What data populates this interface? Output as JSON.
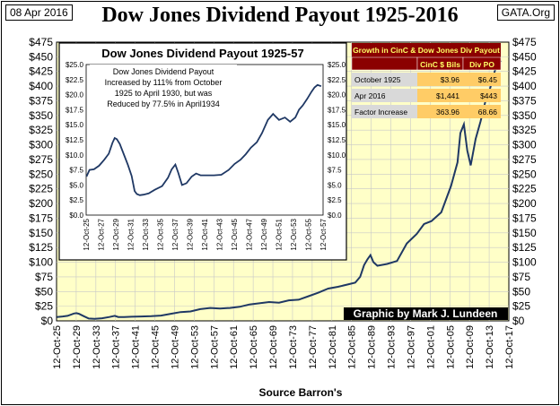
{
  "header": {
    "date": "08 Apr 2016",
    "source": "GATA.Org",
    "title": "Dow Jones Dividend Payout 1925-2016"
  },
  "colors": {
    "plot_bg": "#FFFFC8",
    "line": "#1F3864",
    "grid": "#C8C8C8",
    "table_header_bg": "#8B0000",
    "table_header_text": "#FFFF66",
    "table_cell_bg": "#D9D9D9",
    "table_val_bg": "#FFCC66",
    "credit_bg": "#000000",
    "credit_text": "#FFFFFF"
  },
  "chart_data": [
    {
      "type": "line",
      "title": "Dow Jones Dividend Payout 1925-2016",
      "xlabel": "Source Barron's",
      "ylabel": "",
      "xlim": [
        1925.75,
        2017.75
      ],
      "ylim": [
        0,
        475
      ],
      "yticks": [
        "$0",
        "$25",
        "$50",
        "$75",
        "$100",
        "$125",
        "$150",
        "$175",
        "$200",
        "$225",
        "$250",
        "$275",
        "$300",
        "$325",
        "$350",
        "$375",
        "$400",
        "$425",
        "$450",
        "$475"
      ],
      "xticks": [
        "12-Oct-25",
        "12-Oct-29",
        "12-Oct-33",
        "12-Oct-37",
        "12-Oct-41",
        "12-Oct-45",
        "12-Oct-49",
        "12-Oct-53",
        "12-Oct-57",
        "12-Oct-61",
        "12-Oct-65",
        "12-Oct-69",
        "12-Oct-73",
        "12-Oct-77",
        "12-Oct-81",
        "12-Oct-85",
        "12-Oct-89",
        "12-Oct-93",
        "12-Oct-97",
        "12-Oct-01",
        "12-Oct-05",
        "12-Oct-09",
        "12-Oct-13",
        "12-Oct-17"
      ],
      "series": [
        {
          "name": "DJIA Dividend Payout",
          "x": [
            1925.8,
            1927,
            1928,
            1929.3,
            1929.8,
            1930.3,
            1931.3,
            1932.3,
            1933.5,
            1935,
            1936.5,
            1937.6,
            1938.3,
            1939.5,
            1941,
            1943,
            1945,
            1947,
            1949,
            1951,
            1953,
            1955,
            1957,
            1959,
            1961,
            1963,
            1965,
            1967,
            1969,
            1971,
            1973,
            1975,
            1977,
            1979,
            1981,
            1983,
            1985,
            1986.5,
            1987.5,
            1988.3,
            1989,
            1989.6,
            1990.2,
            1991,
            1993,
            1995,
            1997,
            1999,
            2000.5,
            2002,
            2004,
            2006,
            2007.3,
            2007.9,
            2008.6,
            2009.3,
            2010,
            2011,
            2012,
            2013,
            2013.9,
            2014.7,
            2015.4,
            2016.2
          ],
          "values": [
            6.5,
            7.5,
            8.5,
            12.5,
            13.2,
            12,
            8,
            4,
            3.5,
            4.5,
            6.5,
            8.5,
            6.5,
            6.5,
            7,
            7.5,
            8,
            9,
            12,
            15,
            16,
            20,
            22,
            21,
            22,
            24,
            28,
            30,
            32,
            31,
            35,
            36,
            42,
            48,
            55,
            58,
            62,
            65,
            75,
            95,
            105,
            112,
            100,
            94,
            97,
            102,
            132,
            148,
            165,
            170,
            185,
            230,
            270,
            320,
            335,
            290,
            265,
            310,
            340,
            375,
            395,
            420,
            440,
            443
          ]
        }
      ],
      "annotations": [
        "Graphic by Mark J. Lundeen"
      ]
    },
    {
      "type": "line",
      "title": "Dow Jones Dividend Payout 1925-57",
      "annotations": [
        "Dow Jones Dividend Payout",
        "Increased by  111% from October",
        "1925 to April 1930, but was",
        "Reduced by 77.5% in April1934"
      ],
      "xlim": [
        1925.75,
        1957.75
      ],
      "ylim": [
        0,
        25
      ],
      "yticks": [
        "$0.0",
        "$2.5",
        "$5.0",
        "$7.5",
        "$10.0",
        "$12.5",
        "$15.0",
        "$17.5",
        "$20.0",
        "$22.5",
        "$25.0"
      ],
      "xticks": [
        "12-Oct-25",
        "12-Oct-27",
        "12-Oct-29",
        "12-Oct-31",
        "12-Oct-33",
        "12-Oct-35",
        "12-Oct-37",
        "12-Oct-39",
        "12-Oct-41",
        "12-Oct-43",
        "12-Oct-45",
        "12-Oct-47",
        "12-Oct-49",
        "12-Oct-51",
        "12-Oct-53",
        "12-Oct-55",
        "12-Oct-57"
      ],
      "series": [
        {
          "name": "DJIA Dividend Payout 1925-57",
          "x": [
            1925.8,
            1926.2,
            1926.8,
            1927.5,
            1928.2,
            1928.8,
            1929.3,
            1929.6,
            1929.9,
            1930.3,
            1930.8,
            1931.4,
            1931.9,
            1932.3,
            1932.6,
            1933,
            1933.5,
            1934.2,
            1935,
            1936,
            1936.8,
            1937.3,
            1937.8,
            1938.2,
            1938.7,
            1939.3,
            1940,
            1940.6,
            1941.2,
            1942,
            1943,
            1944,
            1945,
            1945.8,
            1946.6,
            1947.3,
            1948,
            1948.8,
            1949.5,
            1950.3,
            1951,
            1951.8,
            1952.6,
            1953.3,
            1954,
            1954.5,
            1955,
            1955.6,
            1956.2,
            1956.6,
            1957,
            1957.5
          ],
          "values": [
            6.4,
            7.5,
            7.6,
            8.2,
            9.2,
            10.2,
            12,
            12.8,
            12.6,
            11.8,
            10.2,
            8.3,
            6.5,
            4.0,
            3.5,
            3.3,
            3.4,
            3.6,
            4.2,
            4.8,
            6.2,
            7.6,
            8.4,
            7,
            5.0,
            5.3,
            6.4,
            6.9,
            6.6,
            6.6,
            6.6,
            6.7,
            7.5,
            8.5,
            9.2,
            10.1,
            11.2,
            12.1,
            13.6,
            15.8,
            16.8,
            15.8,
            16.2,
            15.5,
            16.2,
            17.5,
            18.2,
            19.3,
            20.5,
            21.2,
            21.6,
            21.4
          ]
        }
      ]
    },
    {
      "type": "table",
      "title": "Growth in CinC & Dow Jones Div Payout",
      "columns": [
        "",
        "CinC $ Bils",
        "Div PO"
      ],
      "rows": [
        [
          "October 1925",
          "$3.96",
          "$6.45"
        ],
        [
          "Apr 2016",
          "$1,441",
          "$443"
        ],
        [
          "Factor Increase",
          "363.96",
          "68.66"
        ]
      ]
    }
  ]
}
